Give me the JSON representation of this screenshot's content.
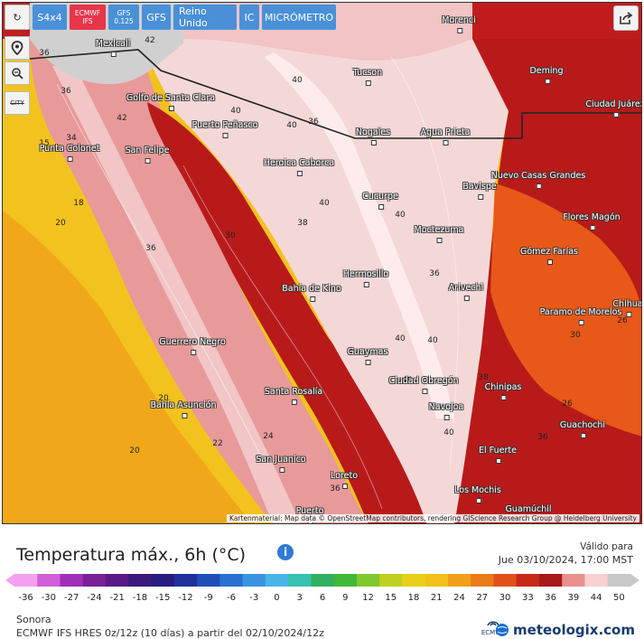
{
  "toolbar": {
    "refresh": "↻",
    "s4x4": "S4x4",
    "ecmwf": [
      "ECMWF",
      "IFS"
    ],
    "gfs0125": [
      "GFS",
      "0.125"
    ],
    "gfs": "GFS",
    "uk": "Reino Unido",
    "ic": "IC",
    "micrometro": "MICRÓMETRO",
    "city_btn": "CITY"
  },
  "map": {
    "attribution": "Kartenmaterial: Map data © OpenStreetMap contributors, rendering GIScience Research Group @ Heidelberg University",
    "cities": [
      {
        "name": "Mexicali"
      },
      {
        "name": "Morenci"
      },
      {
        "name": "Deming"
      },
      {
        "name": "Tucson"
      },
      {
        "name": "Ciudad Juárez"
      },
      {
        "name": "Golfo de Santa Clara"
      },
      {
        "name": "Puerto Peñasco"
      },
      {
        "name": "Nogales"
      },
      {
        "name": "Agua Prieta"
      },
      {
        "name": "Punta Colonet"
      },
      {
        "name": "San Felipe"
      },
      {
        "name": "Heroica Caborca"
      },
      {
        "name": "Nuevo Casas Grandes"
      },
      {
        "name": "Bavispe"
      },
      {
        "name": "Cucurpe"
      },
      {
        "name": "Flores Magón"
      },
      {
        "name": "Moctezuma"
      },
      {
        "name": "Gómez Farías"
      },
      {
        "name": "Hermosillo"
      },
      {
        "name": "Bahía de Kino"
      },
      {
        "name": "Arivechi"
      },
      {
        "name": "Chihua"
      },
      {
        "name": "Paramo de Morelos"
      },
      {
        "name": "Guerrero Negro"
      },
      {
        "name": "Guaymas"
      },
      {
        "name": "Ciudad Obregón"
      },
      {
        "name": "Chinipas"
      },
      {
        "name": "Santa Rosalía"
      },
      {
        "name": "Bahía Asunción"
      },
      {
        "name": "Navojoa"
      },
      {
        "name": "Guachochi"
      },
      {
        "name": "El Fuerte"
      },
      {
        "name": "San Juanico"
      },
      {
        "name": "Loreto"
      },
      {
        "name": "Los Mochis"
      },
      {
        "name": "Guamúchil"
      },
      {
        "name": "Puerto"
      }
    ],
    "temp_labels": [
      "36",
      "42",
      "36",
      "42",
      "40",
      "36",
      "40",
      "34",
      "15",
      "18",
      "20",
      "36",
      "40",
      "38",
      "40",
      "36",
      "30",
      "20",
      "20",
      "22",
      "24",
      "36",
      "40",
      "40",
      "40",
      "38",
      "26",
      "26",
      "36",
      "40",
      "40",
      "30"
    ]
  },
  "legend": {
    "title": "Temperatura máx., 6h (°C)",
    "valid_label": "Válido para",
    "valid_date": "Jue 03/10/2024, 17:00 MST",
    "ticks": [
      "-36",
      "-30",
      "-27",
      "-24",
      "-21",
      "-18",
      "-15",
      "-12",
      "-9",
      "-6",
      "-3",
      "0",
      "3",
      "6",
      "9",
      "12",
      "15",
      "18",
      "21",
      "24",
      "27",
      "30",
      "33",
      "36",
      "39",
      "44",
      "50"
    ],
    "colors": [
      "#f2a0f0",
      "#d060d8",
      "#a030b8",
      "#7a2098",
      "#5a1a86",
      "#3a1a7a",
      "#281c80",
      "#20309a",
      "#1f4eb6",
      "#2a70d0",
      "#3c94e0",
      "#4ab4e8",
      "#38c0b0",
      "#30b060",
      "#40b838",
      "#80c830",
      "#c0d020",
      "#e8d018",
      "#f2c018",
      "#f0a018",
      "#e87a18",
      "#e05018",
      "#c8281a",
      "#a81818",
      "#e89090",
      "#f8d0d0",
      "#c8c8c8"
    ],
    "region": "Sonora",
    "model_line": "ECMWF IFS HRES 0z/12z  (10 días)  a partir del 02/10/2024/12z",
    "ecmwf_logo": "ECMWF",
    "brand": "meteologix.com"
  }
}
